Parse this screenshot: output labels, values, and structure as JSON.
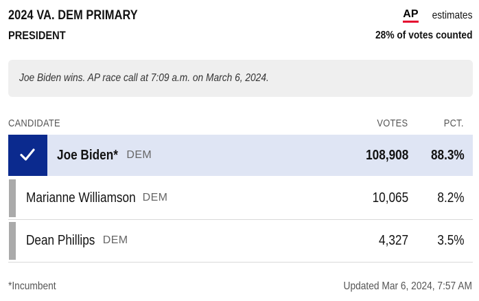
{
  "header": {
    "title": "2024 VA. DEM PRIMARY",
    "subtitle": "PRESIDENT",
    "ap_logo": "AP",
    "estimates_label": "estimates",
    "votes_counted": "28% of votes counted"
  },
  "race_call": {
    "text": "Joe Biden wins. AP race call at 7:09 a.m. on March 6, 2024."
  },
  "table": {
    "columns": {
      "candidate": "CANDIDATE",
      "votes": "VOTES",
      "pct": "PCT."
    },
    "rows": [
      {
        "name": "Joe Biden*",
        "party": "DEM",
        "votes": "108,908",
        "pct": "88.3%",
        "winner": true
      },
      {
        "name": "Marianne Williamson",
        "party": "DEM",
        "votes": "10,065",
        "pct": "8.2%",
        "winner": false
      },
      {
        "name": "Dean Phillips",
        "party": "DEM",
        "votes": "4,327",
        "pct": "3.5%",
        "winner": false
      }
    ]
  },
  "footer": {
    "incumbent_note": "*Incumbent",
    "updated": "Updated Mar 6, 2024, 7:57 AM"
  },
  "colors": {
    "winner_bg": "#dfe5f4",
    "check_bg": "#0b2a8e",
    "loser_bar": "#aaaaaa",
    "ap_underline": "#e4032e"
  },
  "icons": {
    "winner_marker": "checkmark-icon"
  }
}
